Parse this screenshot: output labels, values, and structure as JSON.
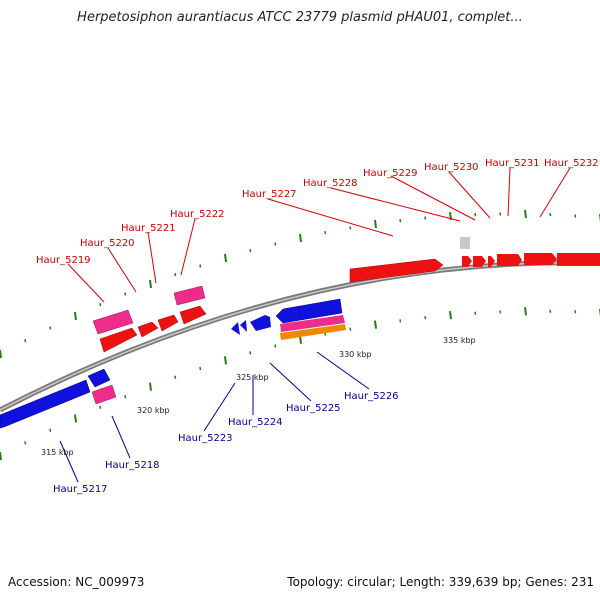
{
  "title": "Herpetosiphon aurantiacus ATCC 23779 plasmid pHAU01, complet...",
  "footer": {
    "accession": "Accession: NC_009973",
    "stats": "Topology: circular; Length: 339,639 bp; Genes: 231"
  },
  "scale_labels": [
    "315 kbp",
    "320 kbp",
    "325 kbp",
    "330 kbp",
    "335 kbp"
  ],
  "colors": {
    "forward_cds": "#ee1111",
    "reverse_cds": "#1111dd",
    "pink_feature": "#ee2d8a",
    "orange_feature": "#ee8a00",
    "grey_feature": "#c8c8c8",
    "backbone": "#8a8a8a",
    "tick": "#2a7a1a",
    "forward_label": "#cc0000",
    "reverse_label": "#000099"
  },
  "forward_genes": [
    "Haur_5219",
    "Haur_5220",
    "Haur_5221",
    "Haur_5222",
    "Haur_5227",
    "Haur_5228",
    "Haur_5229",
    "Haur_5230",
    "Haur_5231",
    "Haur_5232"
  ],
  "reverse_genes": [
    "Haur_5217",
    "Haur_5218",
    "Haur_5223",
    "Haur_5224",
    "Haur_5225",
    "Haur_5226"
  ]
}
